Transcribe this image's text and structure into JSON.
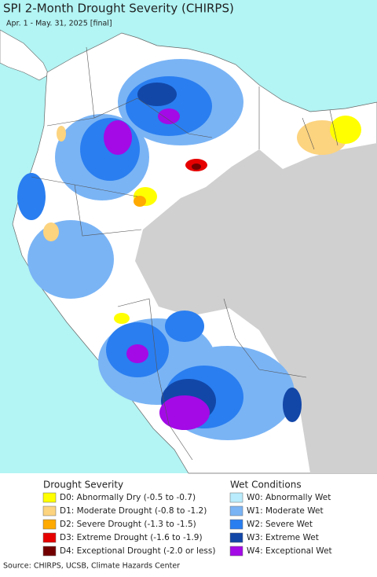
{
  "title": "SPI 2-Month Drought Severity (CHIRPS)",
  "subtitle": "Apr. 1 - May. 31, 2025 [final]",
  "legend": {
    "drought": {
      "title": "Drought Severity",
      "items": [
        {
          "label": "D0: Abnormally Dry (-0.5 to -0.7)",
          "color": "#ffff00"
        },
        {
          "label": "D1: Moderate Drought (-0.8 to -1.2)",
          "color": "#fcd37f"
        },
        {
          "label": "D2: Severe Drought (-1.3 to -1.5)",
          "color": "#ffaa00"
        },
        {
          "label": "D3: Extreme Drought (-1.6 to -1.9)",
          "color": "#e60000"
        },
        {
          "label": "D4: Exceptional Drought (-2.0 or less)",
          "color": "#730000"
        }
      ]
    },
    "wet": {
      "title": "Wet Conditions",
      "items": [
        {
          "label": "W0: Abnormally Wet",
          "color": "#b9ecfc"
        },
        {
          "label": "W1: Moderate Wet",
          "color": "#7ab4f5"
        },
        {
          "label": "W2: Severe Wet",
          "color": "#2a7ef0"
        },
        {
          "label": "W3: Extreme Wet",
          "color": "#1247a8"
        },
        {
          "label": "W4: Exceptional Wet",
          "color": "#a30ae6"
        }
      ]
    }
  },
  "source": "Source: CHIRPS, UCSB, Climate Hazards Center"
}
